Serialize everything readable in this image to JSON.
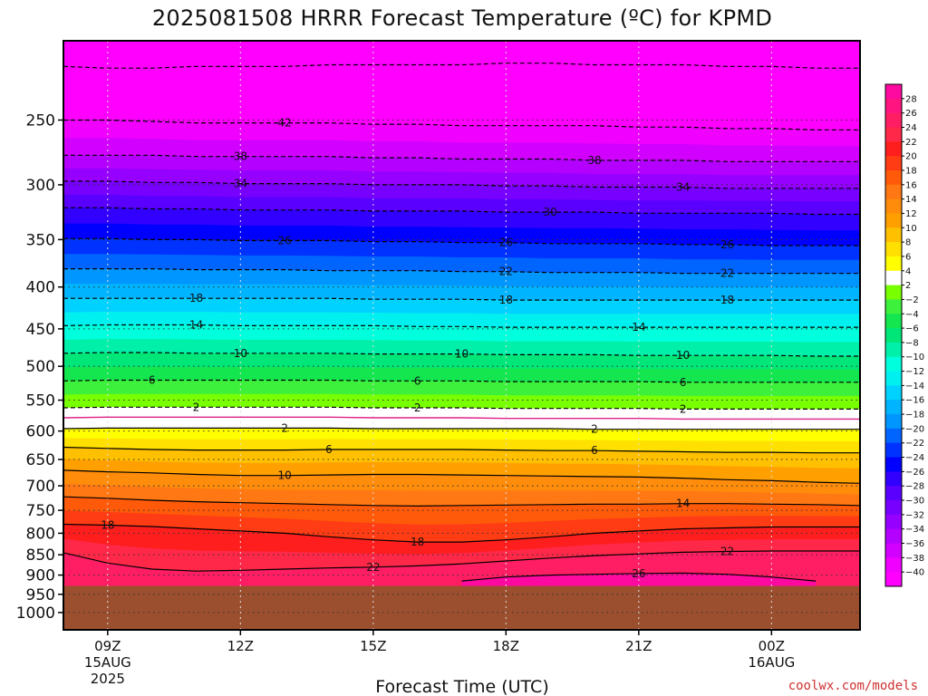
{
  "chart_data": {
    "type": "heatmap",
    "title": "2025081508 HRRR Forecast Temperature (ºC) for KPMD",
    "xlabel": "Forecast Time (UTC)",
    "ylabel": "",
    "y_scale": "log",
    "ylim": [
      1050,
      200
    ],
    "xlim_hours_utc": [
      8,
      26
    ],
    "ground_pressure_hpa": 928,
    "ground_color": "#9b4f2f",
    "y_ticks": [
      250,
      300,
      350,
      400,
      450,
      500,
      550,
      600,
      650,
      700,
      750,
      800,
      850,
      900,
      950,
      1000
    ],
    "x_ticks": [
      {
        "hour": 9,
        "label": "09Z",
        "sub1": "15AUG",
        "sub2": "2025"
      },
      {
        "hour": 12,
        "label": "12Z",
        "sub1": "",
        "sub2": ""
      },
      {
        "hour": 15,
        "label": "15Z",
        "sub1": "",
        "sub2": ""
      },
      {
        "hour": 18,
        "label": "18Z",
        "sub1": "",
        "sub2": ""
      },
      {
        "hour": 21,
        "label": "21Z",
        "sub1": "",
        "sub2": ""
      },
      {
        "hour": 24,
        "label": "00Z",
        "sub1": "16AUG",
        "sub2": ""
      }
    ],
    "colorbar": {
      "labels": [
        "28",
        "26",
        "24",
        "22",
        "20",
        "18",
        "16",
        "14",
        "12",
        "10",
        "8",
        "6",
        "4",
        "2",
        "−2",
        "−4",
        "−6",
        "−8",
        "−10",
        "−12",
        "−14",
        "−16",
        "−18",
        "−20",
        "−22",
        "−24",
        "−26",
        "−28",
        "−30",
        "−32",
        "−34",
        "−36",
        "−38",
        "−40"
      ],
      "colors": [
        "#ff0aa0",
        "#ff1480",
        "#ff1e64",
        "#ff2848",
        "#ff1e1e",
        "#ff3c14",
        "#ff5a0a",
        "#ff7814",
        "#ff8c0a",
        "#ffa000",
        "#ffc000",
        "#ffe000",
        "#ffff00",
        "#ffffff",
        "#78ff00",
        "#3cf03c",
        "#14e650",
        "#00e678",
        "#00f0aa",
        "#00ffdc",
        "#00f0f0",
        "#00d2ff",
        "#00b4ff",
        "#0096ff",
        "#0064ff",
        "#0032ff",
        "#0000ff",
        "#3200ff",
        "#5a00ff",
        "#7800ff",
        "#9600ff",
        "#b400ff",
        "#d200ff",
        "#f000ff",
        "#ff00ff"
      ]
    },
    "times_hours": [
      8,
      9,
      10,
      11,
      12,
      13,
      14,
      15,
      16,
      17,
      18,
      19,
      20,
      21,
      22,
      23,
      24,
      25,
      26
    ],
    "isotherms": [
      {
        "value": -46,
        "label": "",
        "p": [
          215,
          216,
          216,
          215,
          215,
          215,
          214,
          214,
          214,
          214,
          213,
          213,
          214,
          214,
          214,
          215,
          215,
          216,
          216
        ]
      },
      {
        "value": -42,
        "label": "42",
        "label_hours": [
          13
        ],
        "p": [
          250,
          250,
          251,
          252,
          252,
          252,
          252,
          253,
          253,
          254,
          254,
          254,
          254,
          255,
          255,
          256,
          256,
          257,
          257
        ]
      },
      {
        "value": -38,
        "label": "38",
        "label_hours": [
          12,
          20
        ],
        "p": [
          276,
          276,
          276,
          277,
          277,
          277,
          277,
          278,
          278,
          279,
          279,
          279,
          280,
          280,
          280,
          281,
          281,
          281,
          281
        ]
      },
      {
        "value": -34,
        "label": "34",
        "label_hours": [
          12,
          22
        ],
        "p": [
          297,
          297,
          298,
          298,
          299,
          299,
          299,
          300,
          300,
          300,
          301,
          301,
          302,
          302,
          302,
          303,
          303,
          303,
          303
        ]
      },
      {
        "value": -30,
        "label": "30",
        "label_hours": [
          19
        ],
        "p": [
          320,
          320,
          321,
          321,
          322,
          322,
          322,
          323,
          323,
          323,
          324,
          324,
          324,
          325,
          325,
          325,
          325,
          326,
          326
        ]
      },
      {
        "value": -26,
        "label": "26",
        "label_hours": [
          13,
          18,
          23
        ],
        "p": [
          349,
          349,
          350,
          350,
          351,
          351,
          351,
          352,
          352,
          353,
          353,
          354,
          354,
          354,
          355,
          355,
          356,
          356,
          356
        ]
      },
      {
        "value": -22,
        "label": "22",
        "label_hours": [
          18,
          23
        ],
        "p": [
          380,
          380,
          380,
          381,
          381,
          381,
          382,
          382,
          382,
          383,
          383,
          384,
          384,
          384,
          385,
          385,
          385,
          385,
          385
        ]
      },
      {
        "value": -18,
        "label": "18",
        "label_hours": [
          11,
          18,
          23
        ],
        "p": [
          413,
          413,
          413,
          413,
          413,
          413,
          413,
          414,
          414,
          414,
          415,
          415,
          415,
          415,
          415,
          415,
          415,
          415,
          415
        ]
      },
      {
        "value": -14,
        "label": "14",
        "label_hours": [
          11,
          21
        ],
        "p": [
          446,
          445,
          445,
          445,
          446,
          446,
          446,
          446,
          447,
          447,
          448,
          448,
          448,
          448,
          448,
          448,
          448,
          448,
          448
        ]
      },
      {
        "value": -10,
        "label": "10",
        "label_hours": [
          12,
          17,
          22
        ],
        "p": [
          482,
          481,
          481,
          482,
          482,
          482,
          482,
          483,
          483,
          483,
          484,
          484,
          484,
          485,
          485,
          485,
          485,
          486,
          486
        ]
      },
      {
        "value": -6,
        "label": "6",
        "label_hours": [
          10,
          16,
          22
        ],
        "p": [
          521,
          520,
          520,
          520,
          520,
          520,
          520,
          521,
          521,
          521,
          522,
          522,
          522,
          522,
          523,
          523,
          523,
          523,
          523
        ]
      },
      {
        "value": -2,
        "label": "2",
        "label_hours": [
          11,
          16,
          22
        ],
        "p": [
          562,
          561,
          561,
          561,
          561,
          561,
          561,
          562,
          562,
          562,
          563,
          563,
          563,
          563,
          564,
          564,
          564,
          564,
          564
        ]
      },
      {
        "value": 0,
        "label": "",
        "p": [
          578,
          577,
          577,
          577,
          577,
          577,
          577,
          578,
          578,
          578,
          579,
          579,
          579,
          579,
          580,
          580,
          580,
          580,
          580
        ]
      },
      {
        "value": 2,
        "label": "2",
        "label_hours": [
          13,
          20
        ],
        "p": [
          596,
          595,
          595,
          595,
          595,
          595,
          595,
          596,
          596,
          596,
          596,
          596,
          597,
          597,
          597,
          597,
          597,
          597,
          597
        ]
      },
      {
        "value": 6,
        "label": "6",
        "label_hours": [
          14,
          20
        ],
        "p": [
          628,
          630,
          632,
          633,
          633,
          633,
          632,
          632,
          632,
          632,
          633,
          634,
          634,
          635,
          636,
          637,
          637,
          638,
          638
        ]
      },
      {
        "value": 10,
        "label": "10",
        "label_hours": [
          13
        ],
        "p": [
          670,
          673,
          675,
          678,
          680,
          680,
          679,
          678,
          678,
          679,
          680,
          681,
          682,
          683,
          685,
          688,
          690,
          693,
          695
        ]
      },
      {
        "value": 14,
        "label": "14",
        "label_hours": [
          22
        ],
        "p": [
          722,
          725,
          729,
          732,
          734,
          736,
          738,
          740,
          741,
          740,
          739,
          738,
          737,
          737,
          736,
          736,
          737,
          738,
          740
        ]
      },
      {
        "value": 18,
        "label": "18",
        "label_hours": [
          9,
          16
        ],
        "p": [
          780,
          782,
          785,
          790,
          795,
          800,
          808,
          815,
          820,
          820,
          815,
          808,
          800,
          795,
          790,
          788,
          786,
          786,
          786
        ]
      },
      {
        "value": 22,
        "label": "22",
        "label_hours": [
          15,
          23
        ],
        "p": [
          845,
          870,
          885,
          890,
          888,
          885,
          882,
          880,
          877,
          872,
          865,
          858,
          852,
          848,
          844,
          842,
          841,
          841,
          841
        ]
      },
      {
        "value": 26,
        "label": "26",
        "label_hours": [
          21
        ],
        "p": [
          null,
          null,
          null,
          null,
          null,
          null,
          null,
          null,
          null,
          915,
          905,
          900,
          898,
          896,
          895,
          898,
          905,
          915,
          null
        ]
      }
    ]
  },
  "credit": "coolwx.com/models"
}
